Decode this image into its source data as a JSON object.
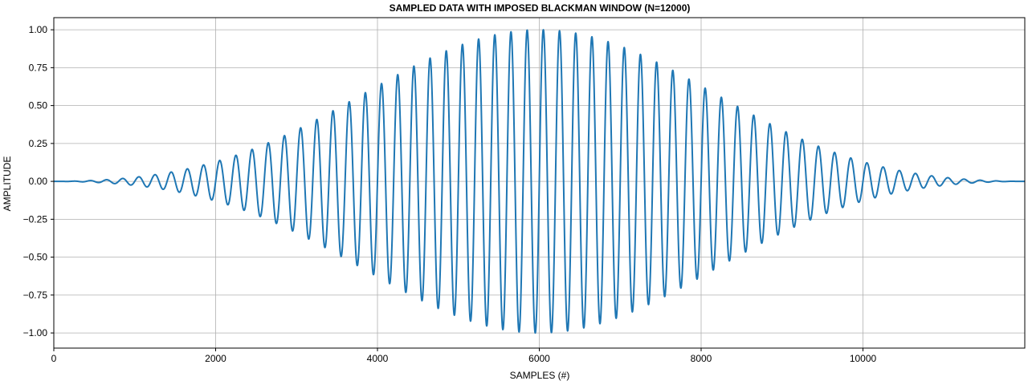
{
  "chart_data": {
    "type": "line",
    "title": "SAMPLED DATA WITH IMPOSED BLACKMAN WINDOW (N=12000)",
    "xlabel": "SAMPLES (#)",
    "ylabel": "AMPLITUDE",
    "xlim": [
      0,
      12000
    ],
    "ylim": [
      -1.1,
      1.08
    ],
    "grid": true,
    "x_ticks": [
      0,
      2000,
      4000,
      6000,
      8000,
      10000
    ],
    "x_tick_labels": [
      "0",
      "2000",
      "4000",
      "6000",
      "8000",
      "10000"
    ],
    "y_ticks": [
      -1.0,
      -0.75,
      -0.5,
      -0.25,
      0.0,
      0.25,
      0.5,
      0.75,
      1.0
    ],
    "y_tick_labels": [
      "−1.00",
      "−0.75",
      "−0.50",
      "−0.25",
      "0.00",
      "0.25",
      "0.50",
      "0.75",
      "1.00"
    ],
    "series": [
      {
        "color": "#1f77b4",
        "samples": 12000,
        "cycles": 60,
        "window": "blackman",
        "peak_amplitude": 1.0
      }
    ]
  }
}
